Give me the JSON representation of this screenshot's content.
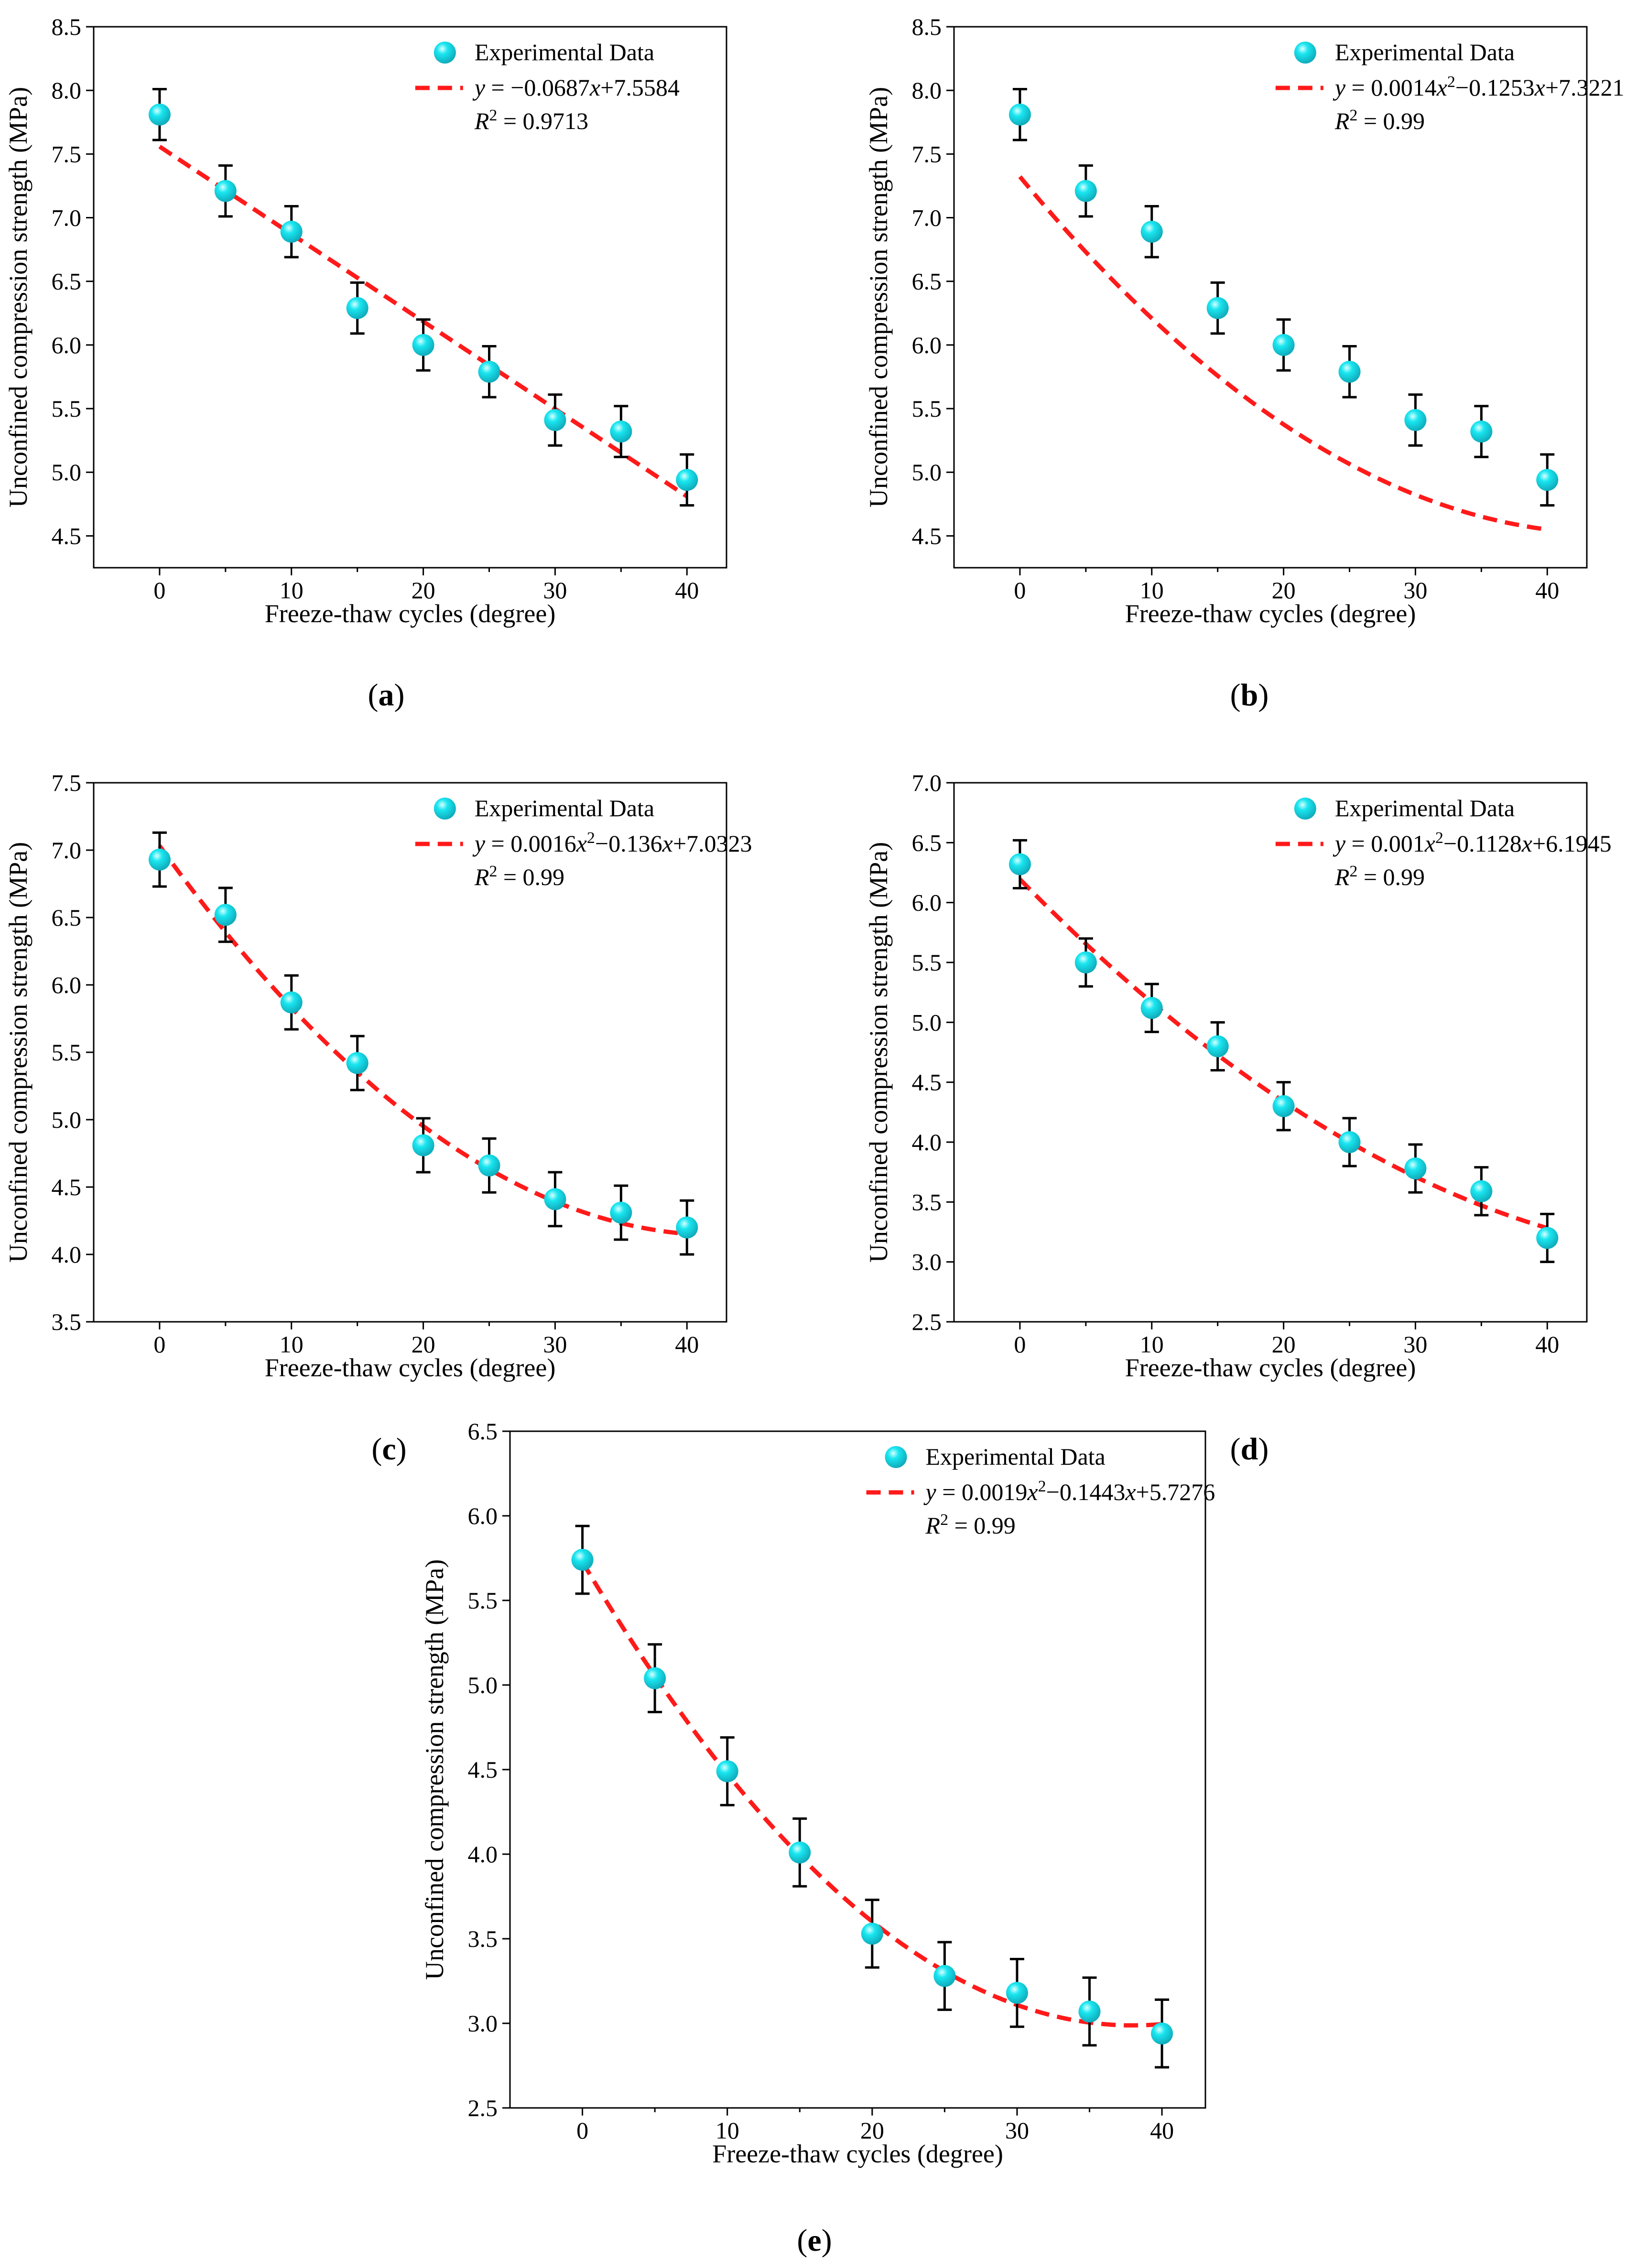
{
  "figure": {
    "legend_marker_label": "Experimental Data",
    "colors": {
      "marker": "#19e6f0",
      "fit_line": "#ff1a1a",
      "axes": "#000000",
      "error_bar": "#000000"
    }
  },
  "chart_data": [
    {
      "id": "a",
      "type": "scatter",
      "panel_label": "(a)",
      "xlabel": "Freeze-thaw cycles (degree)",
      "ylabel": "Unconfined compression strength (MPa)",
      "xlim": [
        -5,
        43
      ],
      "ylim": [
        4.25,
        8.5
      ],
      "xticks": [
        0,
        10,
        20,
        30,
        40
      ],
      "yticks": [
        4.5,
        5.0,
        5.5,
        6.0,
        6.5,
        7.0,
        7.5,
        8.0,
        8.5
      ],
      "ytick_labels": [
        "4.5",
        "5.0",
        "5.5",
        "6.0",
        "6.5",
        "7.0",
        "7.5",
        "8.0",
        "8.5"
      ],
      "x": [
        0,
        5,
        10,
        15,
        20,
        25,
        30,
        35,
        40
      ],
      "y": [
        7.81,
        7.21,
        6.89,
        6.29,
        6.0,
        5.79,
        5.41,
        5.32,
        4.94
      ],
      "error": [
        0.2,
        0.2,
        0.2,
        0.2,
        0.2,
        0.2,
        0.2,
        0.2,
        0.2
      ],
      "fit": {
        "coefficients": [
          0,
          -0.0687,
          7.5584
        ],
        "equation": "y = −0.0687x+7.5584",
        "r2": "R2 = 0.9713"
      },
      "legend": {
        "position": "top-right",
        "entries": [
          "Experimental Data",
          "y = −0.0687x+7.5584",
          "R2 = 0.9713"
        ]
      }
    },
    {
      "id": "b",
      "type": "scatter",
      "panel_label": "(b)",
      "xlabel": "Freeze-thaw cycles (degree)",
      "ylabel": "Unconfined compression strength (MPa)",
      "xlim": [
        -5,
        43
      ],
      "ylim": [
        4.25,
        8.5
      ],
      "xticks": [
        0,
        10,
        20,
        30,
        40
      ],
      "yticks": [
        4.5,
        5.0,
        5.5,
        6.0,
        6.5,
        7.0,
        7.5,
        8.0,
        8.5
      ],
      "ytick_labels": [
        "4.5",
        "5.0",
        "5.5",
        "6.0",
        "6.5",
        "7.0",
        "7.5",
        "8.0",
        "8.5"
      ],
      "x": [
        0,
        5,
        10,
        15,
        20,
        25,
        30,
        35,
        40
      ],
      "y": [
        7.81,
        7.21,
        6.89,
        6.29,
        6.0,
        5.79,
        5.41,
        5.32,
        4.94
      ],
      "error": [
        0.2,
        0.2,
        0.2,
        0.2,
        0.2,
        0.2,
        0.2,
        0.2,
        0.2
      ],
      "fit": {
        "coefficients": [
          0.0014,
          -0.1253,
          7.3221
        ],
        "equation": "y = 0.0014x2−0.1253x+7.3221",
        "r2": "R2 = 0.99"
      },
      "legend": {
        "position": "top-right",
        "entries": [
          "Experimental Data",
          "y = 0.0014x2−0.1253x+7.3221",
          "R2 = 0.99"
        ]
      }
    },
    {
      "id": "c",
      "type": "scatter",
      "panel_label": "(c)",
      "xlabel": "Freeze-thaw cycles (degree)",
      "ylabel": "Unconfined compression strength (MPa)",
      "xlim": [
        -5,
        43
      ],
      "ylim": [
        3.5,
        7.5
      ],
      "xticks": [
        0,
        10,
        20,
        30,
        40
      ],
      "yticks": [
        3.5,
        4.0,
        4.5,
        5.0,
        5.5,
        6.0,
        6.5,
        7.0,
        7.5
      ],
      "ytick_labels": [
        "3.5",
        "4.0",
        "4.5",
        "5.0",
        "5.5",
        "6.0",
        "6.5",
        "7.0",
        "7.5"
      ],
      "x": [
        0,
        5,
        10,
        15,
        20,
        25,
        30,
        35,
        40
      ],
      "y": [
        6.93,
        6.52,
        5.87,
        5.42,
        4.81,
        4.66,
        4.41,
        4.31,
        4.2
      ],
      "error": [
        0.2,
        0.2,
        0.2,
        0.2,
        0.2,
        0.2,
        0.2,
        0.2,
        0.2
      ],
      "fit": {
        "coefficients": [
          0.0016,
          -0.136,
          7.0323
        ],
        "equation": "y = 0.0016x2−0.136x+7.0323",
        "r2": "R2 = 0.99"
      },
      "legend": {
        "position": "top-right",
        "entries": [
          "Experimental Data",
          "y = 0.0016x2−0.136x+7.0323",
          "R2 = 0.99"
        ]
      }
    },
    {
      "id": "d",
      "type": "scatter",
      "panel_label": "(d)",
      "xlabel": "Freeze-thaw cycles (degree)",
      "ylabel": "Unconfined compression strength (MPa)",
      "xlim": [
        -5,
        43
      ],
      "ylim": [
        2.5,
        7.0
      ],
      "xticks": [
        0,
        10,
        20,
        30,
        40
      ],
      "yticks": [
        2.5,
        3.0,
        3.5,
        4.0,
        4.5,
        5.0,
        5.5,
        6.0,
        6.5,
        7.0
      ],
      "ytick_labels": [
        "2.5",
        "3.0",
        "3.5",
        "4.0",
        "4.5",
        "5.0",
        "5.5",
        "6.0",
        "6.5",
        "7.0"
      ],
      "x": [
        0,
        5,
        10,
        15,
        20,
        25,
        30,
        35,
        40
      ],
      "y": [
        6.32,
        5.5,
        5.12,
        4.8,
        4.3,
        4.0,
        3.78,
        3.59,
        3.2
      ],
      "error": [
        0.2,
        0.2,
        0.2,
        0.2,
        0.2,
        0.2,
        0.2,
        0.2,
        0.2
      ],
      "fit": {
        "coefficients": [
          0.001,
          -0.1128,
          6.1945
        ],
        "equation": "y = 0.001x2−0.1128x+6.1945",
        "r2": "R2 = 0.99"
      },
      "legend": {
        "position": "top-right",
        "entries": [
          "Experimental Data",
          "y = 0.001x2−0.1128x+6.1945",
          "R2 = 0.99"
        ]
      }
    },
    {
      "id": "e",
      "type": "scatter",
      "panel_label": "(e)",
      "xlabel": "Freeze-thaw cycles (degree)",
      "ylabel": "Unconfined compression strength (MPa)",
      "xlim": [
        -5,
        43
      ],
      "ylim": [
        2.5,
        6.5
      ],
      "xticks": [
        0,
        10,
        20,
        30,
        40
      ],
      "yticks": [
        2.5,
        3.0,
        3.5,
        4.0,
        4.5,
        5.0,
        5.5,
        6.0,
        6.5
      ],
      "ytick_labels": [
        "2.5",
        "3.0",
        "3.5",
        "4.0",
        "4.5",
        "5.0",
        "5.5",
        "6.0",
        "6.5"
      ],
      "x": [
        0,
        5,
        10,
        15,
        20,
        25,
        30,
        35,
        40
      ],
      "y": [
        5.74,
        5.04,
        4.49,
        4.01,
        3.53,
        3.28,
        3.18,
        3.07,
        2.94
      ],
      "error": [
        0.2,
        0.2,
        0.2,
        0.2,
        0.2,
        0.2,
        0.2,
        0.2,
        0.2
      ],
      "fit": {
        "coefficients": [
          0.0019,
          -0.1443,
          5.7276
        ],
        "equation": "y = 0.0019x2−0.1443x+5.7276",
        "r2": "R2 = 0.99"
      },
      "legend": {
        "position": "top-right",
        "entries": [
          "Experimental Data",
          "y = 0.0019x2−0.1443x+5.7276",
          "R2 = 0.99"
        ]
      }
    }
  ]
}
